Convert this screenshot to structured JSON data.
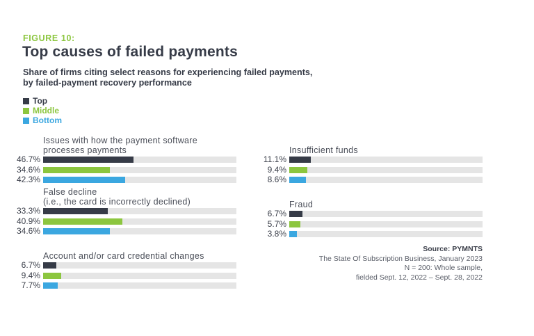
{
  "figure": {
    "label": "FIGURE 10:",
    "title": "Top causes of failed payments",
    "subtitle_line1": "Share of firms citing select reasons for experiencing failed payments,",
    "subtitle_line2": "by failed-payment recovery performance"
  },
  "colors": {
    "top": "#363b47",
    "middle": "#8cc63f",
    "bottom": "#3ba7e0",
    "track": "#e5e5e5",
    "accent": "#8cc63f"
  },
  "legend": [
    {
      "label": "Top",
      "color": "#363b47"
    },
    {
      "label": "Middle",
      "color": "#8cc63f"
    },
    {
      "label": "Bottom",
      "color": "#3ba7e0"
    }
  ],
  "source": {
    "title": "Source: PYMNTS",
    "line1": "The State Of Subscription Business, January 2023",
    "line2": "N = 200: Whole sample,",
    "line3": "fielded Sept. 12, 2022 – Sept. 28, 2022"
  },
  "chart_data": {
    "type": "bar",
    "orientation": "horizontal",
    "title": "Top causes of failed payments",
    "subtitle": "Share of firms citing select reasons for experiencing failed payments, by failed-payment recovery performance",
    "xlabel": "",
    "ylabel": "",
    "xlim": [
      0,
      100
    ],
    "grid": false,
    "legend_position": "top-left",
    "categories": [
      "Issues with how the payment software processes payments",
      "False decline (i.e., the card is incorrectly declined)",
      "Account and/or card credential changes",
      "Insufficient funds",
      "Fraud"
    ],
    "series": [
      {
        "name": "Top",
        "color": "#363b47",
        "values": [
          46.7,
          33.3,
          6.7,
          11.1,
          6.7
        ]
      },
      {
        "name": "Middle",
        "color": "#8cc63f",
        "values": [
          34.6,
          40.9,
          9.4,
          9.4,
          5.7
        ]
      },
      {
        "name": "Bottom",
        "color": "#3ba7e0",
        "values": [
          42.3,
          34.6,
          7.7,
          8.6,
          3.8
        ]
      }
    ],
    "groups": [
      {
        "label_line1": "Issues with how the payment software",
        "label_line2": "processes payments",
        "rows": [
          {
            "series": "Top",
            "value": 46.7,
            "label": "46.7%"
          },
          {
            "series": "Middle",
            "value": 34.6,
            "label": "34.6%"
          },
          {
            "series": "Bottom",
            "value": 42.3,
            "label": "42.3%"
          }
        ]
      },
      {
        "label_line1": "False decline",
        "label_line2": "(i.e., the card is incorrectly declined)",
        "rows": [
          {
            "series": "Top",
            "value": 33.3,
            "label": "33.3%"
          },
          {
            "series": "Middle",
            "value": 40.9,
            "label": "40.9%"
          },
          {
            "series": "Bottom",
            "value": 34.6,
            "label": "34.6%"
          }
        ]
      },
      {
        "label_line1": "Account and/or card credential changes",
        "label_line2": "",
        "rows": [
          {
            "series": "Top",
            "value": 6.7,
            "label": "6.7%"
          },
          {
            "series": "Middle",
            "value": 9.4,
            "label": "9.4%"
          },
          {
            "series": "Bottom",
            "value": 7.7,
            "label": "7.7%"
          }
        ]
      },
      {
        "label_line1": "Insufficient funds",
        "label_line2": "",
        "rows": [
          {
            "series": "Top",
            "value": 11.1,
            "label": "11.1%"
          },
          {
            "series": "Middle",
            "value": 9.4,
            "label": "9.4%"
          },
          {
            "series": "Bottom",
            "value": 8.6,
            "label": "8.6%"
          }
        ]
      },
      {
        "label_line1": "Fraud",
        "label_line2": "",
        "rows": [
          {
            "series": "Top",
            "value": 6.7,
            "label": "6.7%"
          },
          {
            "series": "Middle",
            "value": 5.7,
            "label": "5.7%"
          },
          {
            "series": "Bottom",
            "value": 3.8,
            "label": "3.8%"
          }
        ]
      }
    ]
  }
}
